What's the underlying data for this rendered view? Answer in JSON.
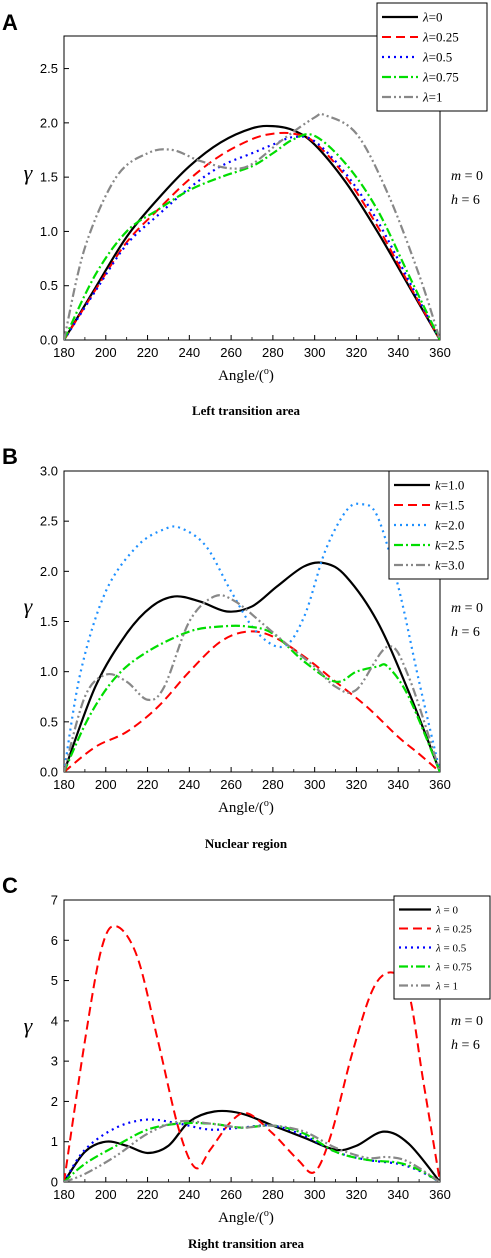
{
  "chart_data": [
    {
      "panel_label": "A",
      "type": "line",
      "xlabel": "Angle/(o)",
      "ylabel": "γ",
      "caption": "Left transition area",
      "xlim": [
        180,
        360
      ],
      "ylim": [
        0,
        2.8
      ],
      "xticks": [
        180,
        200,
        220,
        240,
        260,
        280,
        300,
        320,
        340,
        360
      ],
      "yticks": [
        "0.0",
        "0.5",
        "1.0",
        "1.5",
        "2.0",
        "2.5"
      ],
      "annotations": [
        "m = 0",
        "h = 6"
      ],
      "legend_position": "top-right",
      "series": [
        {
          "name": "λ=0",
          "color": "#000000",
          "dash": "solid",
          "x": [
            180,
            195,
            210,
            225,
            240,
            255,
            270,
            280,
            290,
            300,
            315,
            330,
            345,
            360
          ],
          "y": [
            0,
            0.48,
            0.95,
            1.3,
            1.6,
            1.82,
            1.95,
            1.97,
            1.93,
            1.8,
            1.45,
            1.0,
            0.5,
            0
          ]
        },
        {
          "name": "λ=0.25",
          "color": "#ff0000",
          "dash": "dash",
          "x": [
            180,
            195,
            210,
            225,
            240,
            255,
            270,
            280,
            290,
            300,
            315,
            330,
            345,
            360
          ],
          "y": [
            0,
            0.46,
            0.9,
            1.2,
            1.48,
            1.7,
            1.85,
            1.9,
            1.9,
            1.82,
            1.5,
            1.05,
            0.52,
            0
          ]
        },
        {
          "name": "λ=0.5",
          "color": "#0000ff",
          "dash": "dot",
          "x": [
            180,
            195,
            210,
            225,
            240,
            255,
            270,
            280,
            290,
            300,
            315,
            330,
            345,
            360
          ],
          "y": [
            0,
            0.45,
            0.88,
            1.15,
            1.4,
            1.6,
            1.72,
            1.8,
            1.87,
            1.83,
            1.53,
            1.1,
            0.55,
            0
          ]
        },
        {
          "name": "λ=0.75",
          "color": "#00dd00",
          "dash": "dashdot",
          "x": [
            180,
            195,
            210,
            225,
            240,
            255,
            270,
            280,
            290,
            300,
            315,
            330,
            345,
            360
          ],
          "y": [
            0,
            0.6,
            1.0,
            1.2,
            1.38,
            1.5,
            1.6,
            1.72,
            1.85,
            1.88,
            1.62,
            1.2,
            0.6,
            0
          ]
        },
        {
          "name": "λ=1",
          "color": "#888888",
          "dash": "dashdotdot",
          "x": [
            180,
            190,
            205,
            220,
            232,
            245,
            260,
            270,
            285,
            300,
            305,
            320,
            335,
            350,
            360
          ],
          "y": [
            0,
            0.85,
            1.5,
            1.72,
            1.75,
            1.65,
            1.58,
            1.62,
            1.85,
            2.05,
            2.07,
            1.9,
            1.35,
            0.6,
            0
          ]
        }
      ]
    },
    {
      "panel_label": "B",
      "type": "line",
      "xlabel": "Angle/(o)",
      "ylabel": "γ",
      "caption": "Nuclear region",
      "xlim": [
        180,
        360
      ],
      "ylim": [
        0,
        3.0
      ],
      "xticks": [
        180,
        200,
        220,
        240,
        260,
        280,
        300,
        320,
        340,
        360
      ],
      "yticks": [
        "0.0",
        "0.5",
        "1.0",
        "1.5",
        "2.0",
        "2.5",
        "3.0"
      ],
      "annotations": [
        "m = 0",
        "h = 6"
      ],
      "legend_position": "top-right",
      "series": [
        {
          "name": "k=1.0",
          "color": "#000000",
          "dash": "solid",
          "x": [
            180,
            195,
            210,
            222,
            233,
            245,
            258,
            270,
            282,
            295,
            305,
            315,
            330,
            345,
            360
          ],
          "y": [
            0,
            0.85,
            1.38,
            1.65,
            1.75,
            1.7,
            1.6,
            1.65,
            1.85,
            2.05,
            2.08,
            1.95,
            1.5,
            0.8,
            0
          ]
        },
        {
          "name": "k=1.5",
          "color": "#ff0000",
          "dash": "dash",
          "x": [
            180,
            195,
            210,
            225,
            240,
            255,
            268,
            280,
            295,
            310,
            325,
            340,
            350,
            360
          ],
          "y": [
            0,
            0.25,
            0.4,
            0.65,
            1.0,
            1.3,
            1.4,
            1.35,
            1.15,
            0.9,
            0.65,
            0.35,
            0.18,
            0
          ]
        },
        {
          "name": "k=2.0",
          "color": "#1e90ff",
          "dash": "dot",
          "x": [
            180,
            188,
            200,
            215,
            228,
            236,
            248,
            260,
            272,
            285,
            295,
            305,
            315,
            322,
            330,
            340,
            350,
            360
          ],
          "y": [
            0,
            1.0,
            1.8,
            2.25,
            2.42,
            2.43,
            2.25,
            1.8,
            1.4,
            1.25,
            1.55,
            2.2,
            2.6,
            2.67,
            2.55,
            1.85,
            0.9,
            0
          ]
        },
        {
          "name": "k=2.5",
          "color": "#00dd00",
          "dash": "dashdot",
          "x": [
            180,
            192,
            205,
            220,
            240,
            255,
            268,
            280,
            295,
            310,
            320,
            330,
            335,
            345,
            360
          ],
          "y": [
            0,
            0.55,
            0.95,
            1.2,
            1.4,
            1.45,
            1.45,
            1.38,
            1.1,
            0.9,
            1.0,
            1.05,
            1.05,
            0.75,
            0
          ]
        },
        {
          "name": "k=3.0",
          "color": "#888888",
          "dash": "dashdotdot",
          "x": [
            180,
            190,
            200,
            210,
            220,
            228,
            240,
            252,
            262,
            275,
            288,
            300,
            310,
            320,
            335,
            345,
            360
          ],
          "y": [
            0,
            0.75,
            0.97,
            0.9,
            0.72,
            0.85,
            1.5,
            1.75,
            1.7,
            1.48,
            1.25,
            1.05,
            0.85,
            0.82,
            1.25,
            0.95,
            0
          ]
        }
      ]
    },
    {
      "panel_label": "C",
      "type": "line",
      "xlabel": "Angle/(o)",
      "ylabel": "γ",
      "caption": "Right transition area",
      "xlim": [
        180,
        360
      ],
      "ylim": [
        0,
        7
      ],
      "xticks": [
        180,
        200,
        220,
        240,
        260,
        280,
        300,
        320,
        340,
        360
      ],
      "yticks": [
        "0",
        "1",
        "2",
        "3",
        "4",
        "5",
        "6",
        "7"
      ],
      "annotations": [
        "m = 0",
        "h = 6"
      ],
      "legend_position": "top-right",
      "series": [
        {
          "name": "λ = 0",
          "color": "#000000",
          "dash": "solid",
          "x": [
            180,
            190,
            200,
            210,
            220,
            230,
            240,
            252,
            265,
            280,
            295,
            310,
            320,
            333,
            345,
            360
          ],
          "y": [
            0,
            0.75,
            1.0,
            0.9,
            0.72,
            0.9,
            1.5,
            1.75,
            1.7,
            1.4,
            1.1,
            0.8,
            0.9,
            1.25,
            0.95,
            0
          ]
        },
        {
          "name": "λ = 0.25",
          "color": "#ff0000",
          "dash": "dash",
          "x": [
            180,
            190,
            198,
            205,
            215,
            225,
            235,
            243,
            250,
            260,
            268,
            280,
            292,
            300,
            308,
            318,
            328,
            337,
            345,
            352,
            360
          ],
          "y": [
            0,
            3.5,
            5.8,
            6.35,
            5.6,
            3.5,
            1.3,
            0.35,
            0.8,
            1.5,
            1.7,
            1.2,
            0.55,
            0.25,
            1.2,
            3.2,
            4.8,
            5.2,
            4.7,
            2.5,
            0
          ]
        },
        {
          "name": "λ = 0.5",
          "color": "#0000ff",
          "dash": "dot",
          "x": [
            180,
            190,
            205,
            220,
            235,
            250,
            265,
            280,
            295,
            310,
            325,
            340,
            350,
            360
          ],
          "y": [
            0,
            0.8,
            1.35,
            1.55,
            1.45,
            1.3,
            1.35,
            1.4,
            1.15,
            0.75,
            0.55,
            0.45,
            0.28,
            0
          ]
        },
        {
          "name": "λ = 0.75",
          "color": "#00dd00",
          "dash": "dashdot",
          "x": [
            180,
            190,
            205,
            220,
            235,
            250,
            265,
            280,
            295,
            310,
            325,
            340,
            350,
            360
          ],
          "y": [
            0,
            0.45,
            0.9,
            1.3,
            1.45,
            1.45,
            1.35,
            1.4,
            1.2,
            0.75,
            0.55,
            0.48,
            0.3,
            0
          ]
        },
        {
          "name": "λ = 1",
          "color": "#888888",
          "dash": "dashdotdot",
          "x": [
            180,
            190,
            205,
            220,
            235,
            250,
            265,
            280,
            295,
            310,
            325,
            335,
            345,
            360
          ],
          "y": [
            0,
            0.2,
            0.65,
            1.2,
            1.5,
            1.45,
            1.35,
            1.4,
            1.25,
            0.85,
            0.6,
            0.62,
            0.5,
            0
          ]
        }
      ]
    }
  ]
}
